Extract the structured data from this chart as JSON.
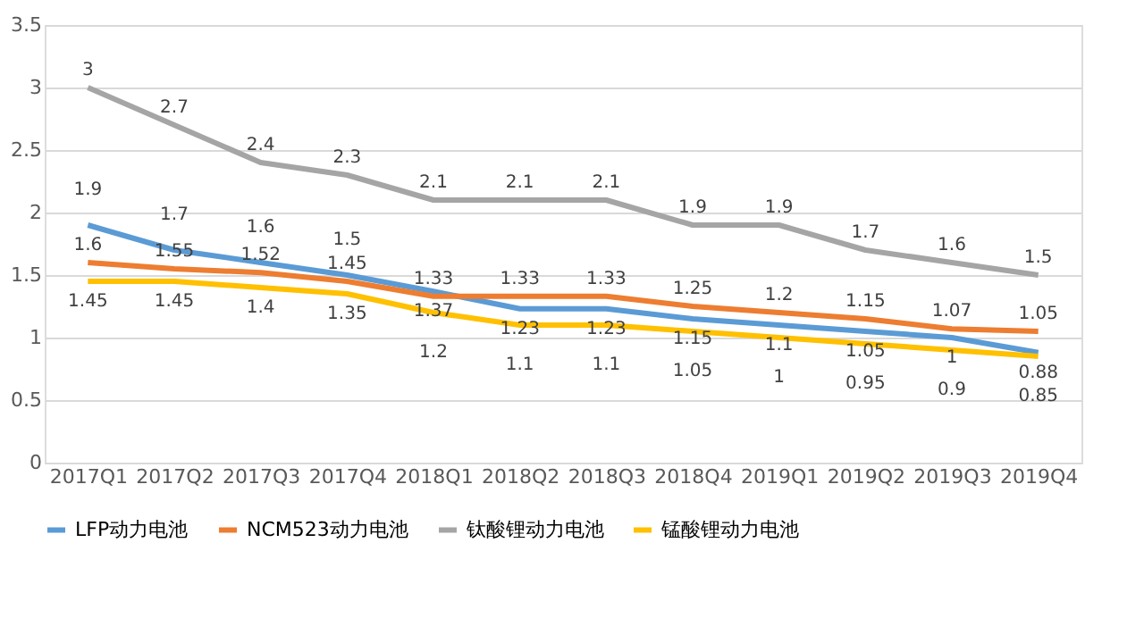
{
  "chart_data": {
    "type": "line",
    "categories": [
      "2017Q1",
      "2017Q2",
      "2017Q3",
      "2017Q4",
      "2018Q1",
      "2018Q2",
      "2018Q3",
      "2018Q4",
      "2019Q1",
      "2019Q2",
      "2019Q3",
      "2019Q4"
    ],
    "series": [
      {
        "name": "LFP动力电池",
        "color": "#5b9bd5",
        "values": [
          1.9,
          1.7,
          1.6,
          1.5,
          1.37,
          1.23,
          1.23,
          1.15,
          1.1,
          1.05,
          1,
          0.88
        ]
      },
      {
        "name": "NCM523动力电池",
        "color": "#ed7d31",
        "values": [
          1.6,
          1.55,
          1.52,
          1.45,
          1.33,
          1.33,
          1.33,
          1.25,
          1.2,
          1.15,
          1.07,
          1.05
        ]
      },
      {
        "name": "钛酸锂动力电池",
        "color": "#a5a5a5",
        "values": [
          3,
          2.7,
          2.4,
          2.3,
          2.1,
          2.1,
          2.1,
          1.9,
          1.9,
          1.7,
          1.6,
          1.5
        ]
      },
      {
        "name": "锰酸锂动力电池",
        "color": "#ffc000",
        "values": [
          1.45,
          1.45,
          1.4,
          1.35,
          1.2,
          1.1,
          1.1,
          1.05,
          1,
          0.95,
          0.9,
          0.85
        ]
      }
    ],
    "ylim": [
      0,
      3.5
    ],
    "yticks": [
      0,
      0.5,
      1,
      1.5,
      2,
      2.5,
      3,
      3.5
    ],
    "grid": "y",
    "legend": "bottom",
    "data_labels": true,
    "marker": "none",
    "line_style": "solid"
  }
}
